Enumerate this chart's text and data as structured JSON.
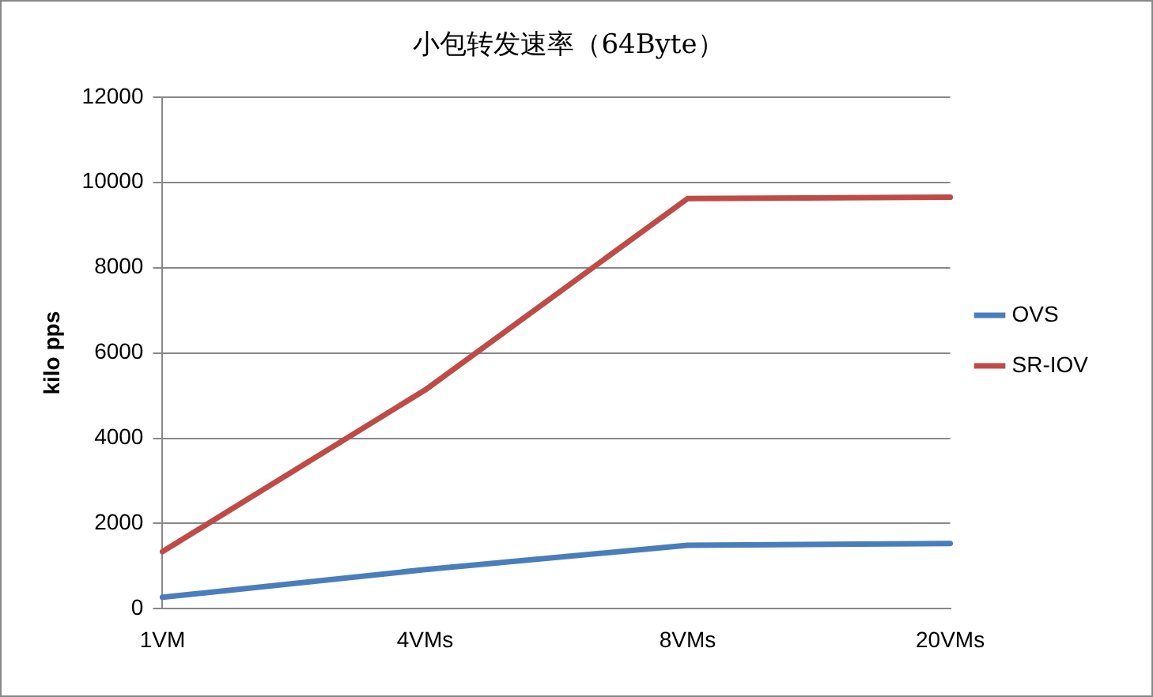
{
  "chart_data": {
    "type": "line",
    "title": "小包转发速率（64Byte）",
    "ylabel": "kilo pps",
    "categories": [
      "1VM",
      "4VMs",
      "8VMs",
      "20VMs"
    ],
    "series": [
      {
        "name": "OVS",
        "color": "#4a7ebb",
        "values": [
          270,
          920,
          1490,
          1530
        ]
      },
      {
        "name": "SR-IOV",
        "color": "#be4b48",
        "values": [
          1340,
          5130,
          9620,
          9650
        ]
      }
    ],
    "ylim": [
      0,
      12000
    ],
    "yticks": [
      0,
      2000,
      4000,
      6000,
      8000,
      10000,
      12000
    ],
    "grid": "y",
    "legend": "right",
    "marker": "none",
    "line_style": "solid"
  }
}
